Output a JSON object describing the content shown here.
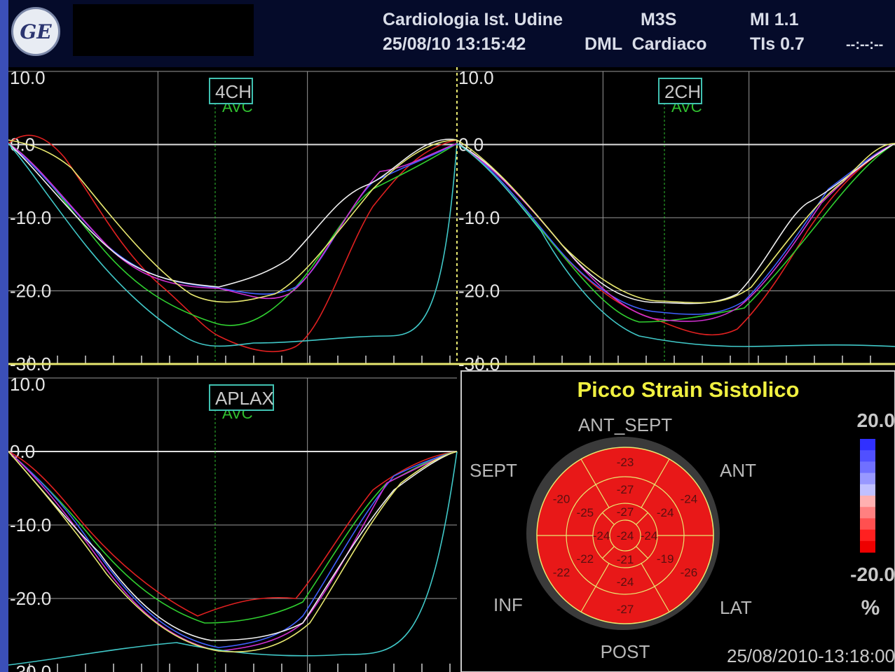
{
  "header": {
    "logo_text": "GE",
    "institution": "Cardiologia Ist. Udine",
    "datetime": "25/08/10 13:15:42",
    "probe": "M3S",
    "preset": "DML  Cardiaco",
    "mi": "MI 1.1",
    "tis": "TIs 0.7",
    "timer": "--:--:--"
  },
  "panels": {
    "four_ch": {
      "label": "4CH",
      "marker": "AVC"
    },
    "two_ch": {
      "label": "2CH",
      "marker": "AVC"
    },
    "aplax": {
      "label": "APLAX",
      "marker": "AVC"
    }
  },
  "axis": {
    "ticks": [
      "10.0",
      "0.0",
      "-10.0",
      "-20.0",
      "-30.0"
    ],
    "values": [
      10,
      0,
      -10,
      -20,
      -30
    ]
  },
  "colors": {
    "red": "#e02020",
    "green": "#30d030",
    "blue": "#4060ff",
    "magenta": "#d030d0",
    "yellow": "#e8e870",
    "white": "#f0f0f0",
    "cyan": "#40c8c8",
    "gridline": "#b8b8b8"
  },
  "bullseye": {
    "title": "Picco Strain Sistolico",
    "labels": {
      "ant_sept": "ANT_SEPT",
      "ant": "ANT",
      "sept": "SEPT",
      "inf": "INF",
      "lat": "LAT",
      "post": "POST"
    },
    "segments": {
      "basal": [
        "-23",
        "-24",
        "-26",
        "-27",
        "-22",
        "-20"
      ],
      "mid": [
        "-27",
        "-24",
        "-19",
        "-24",
        "-22",
        "-25"
      ],
      "apical": [
        "-27",
        "-24",
        "-21",
        "-24"
      ],
      "apex": "-24"
    },
    "scale_max": "20.0",
    "scale_min": "-20.0",
    "unit": "%",
    "footer_time": "25/08/2010-13:18:00",
    "scale_colors": [
      "#3030ff",
      "#5050ff",
      "#7070ff",
      "#9898ff",
      "#c0c0ff",
      "#ffb0b0",
      "#ff8080",
      "#ff5050",
      "#ff2020",
      "#ee0000"
    ]
  }
}
